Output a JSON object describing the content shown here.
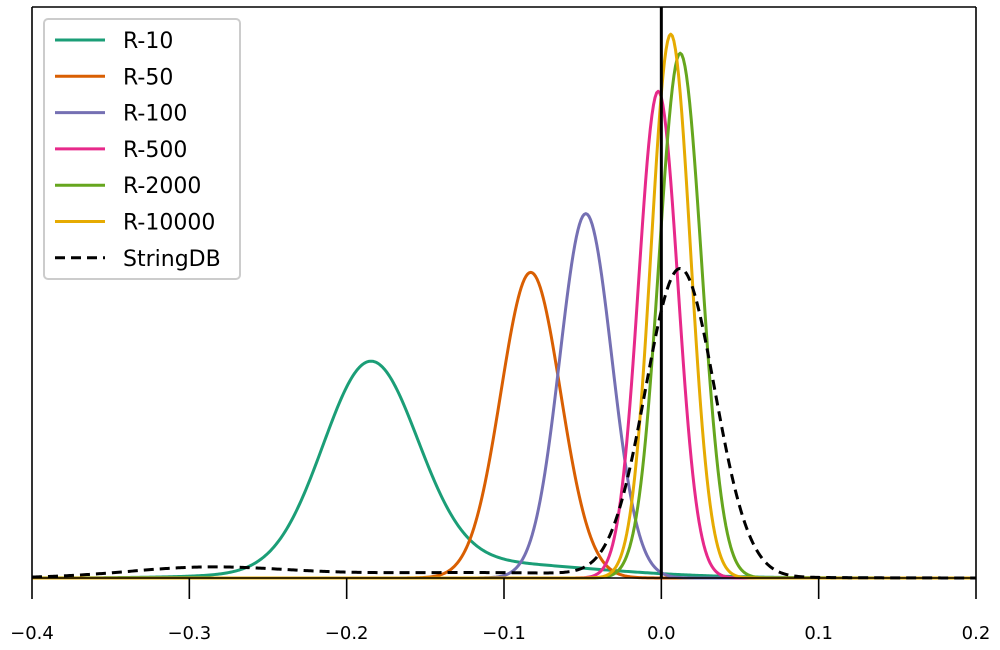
{
  "chart_data": {
    "type": "line",
    "title": "",
    "xlabel": "",
    "ylabel": "",
    "xlim": [
      -0.4,
      0.2
    ],
    "ylim": [
      0,
      1.05
    ],
    "xticks": [
      -0.4,
      -0.3,
      -0.2,
      -0.1,
      0.0,
      0.1,
      0.2
    ],
    "xtick_labels": [
      "−0.4",
      "−0.3",
      "−0.2",
      "−0.1",
      "0.0",
      "0.1",
      "0.2"
    ],
    "show_yticks": false,
    "grid": false,
    "vertical_reference_line_x": 0.0,
    "legend_position": "top-left",
    "series": [
      {
        "name": "R-10",
        "color": "#1b9e77",
        "dash": "solid",
        "components": [
          {
            "mu": -0.185,
            "sigma": 0.03,
            "amp": 0.375
          },
          {
            "mu": -0.13,
            "sigma": 0.08,
            "amp": 0.03
          }
        ]
      },
      {
        "name": "R-50",
        "color": "#d95f02",
        "dash": "solid",
        "components": [
          {
            "mu": -0.083,
            "sigma": 0.019,
            "amp": 0.562
          }
        ]
      },
      {
        "name": "R-100",
        "color": "#7570b3",
        "dash": "solid",
        "components": [
          {
            "mu": -0.048,
            "sigma": 0.0165,
            "amp": 0.67
          }
        ]
      },
      {
        "name": "R-500",
        "color": "#e7298a",
        "dash": "solid",
        "components": [
          {
            "mu": -0.002,
            "sigma": 0.0125,
            "amp": 0.895
          }
        ]
      },
      {
        "name": "R-2000",
        "color": "#66a61e",
        "dash": "solid",
        "components": [
          {
            "mu": 0.012,
            "sigma": 0.0135,
            "amp": 0.965
          }
        ]
      },
      {
        "name": "R-10000",
        "color": "#e6ab02",
        "dash": "solid",
        "components": [
          {
            "mu": 0.006,
            "sigma": 0.0125,
            "amp": 1.0
          }
        ]
      },
      {
        "name": "StringDB",
        "color": "#000000",
        "dash": "dashed",
        "components": [
          {
            "mu": 0.012,
            "sigma": 0.022,
            "amp": 0.565
          },
          {
            "mu": -0.29,
            "sigma": 0.05,
            "amp": 0.018
          },
          {
            "mu": -0.12,
            "sigma": 0.1,
            "amp": 0.01
          }
        ]
      }
    ]
  }
}
